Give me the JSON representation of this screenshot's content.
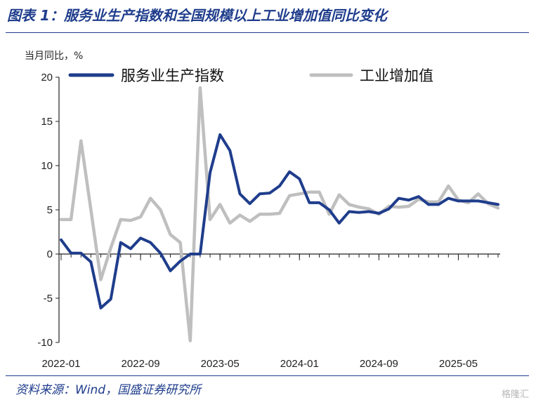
{
  "header": {
    "title": "图表 1：服务业生产指数和全国规模以上工业增加值同比变化"
  },
  "footer": {
    "source": "资料来源：Wind，国盛证券研究所",
    "watermark": "格隆汇"
  },
  "chart_data": {
    "type": "line",
    "title": "图表 1：服务业生产指数和全国规模以上工业增加值同比变化",
    "ylabel": "当月同比，%",
    "xlabel": "",
    "ylim": [
      -10,
      20
    ],
    "yticks": [
      -10,
      -5,
      0,
      5,
      10,
      15,
      20
    ],
    "x_tick_labels": [
      "2022-01",
      "2022-09",
      "2023-05",
      "2024-01",
      "2024-09",
      "2025-05"
    ],
    "x": [
      "2022-01",
      "2022-02",
      "2022-03",
      "2022-04",
      "2022-05",
      "2022-06",
      "2022-07",
      "2022-08",
      "2022-09",
      "2022-10",
      "2022-11",
      "2022-12",
      "2023-01",
      "2023-02",
      "2023-03",
      "2023-04",
      "2023-05",
      "2023-06",
      "2023-07",
      "2023-08",
      "2023-09",
      "2023-10",
      "2023-11",
      "2023-12",
      "2024-01",
      "2024-02",
      "2024-03",
      "2024-04",
      "2024-05",
      "2024-06",
      "2024-07",
      "2024-08",
      "2024-09",
      "2024-10",
      "2024-11",
      "2024-12",
      "2025-01",
      "2025-02",
      "2025-03",
      "2025-04",
      "2025-05",
      "2025-06",
      "2025-07",
      "2025-08",
      "2025-09"
    ],
    "grid": false,
    "legend_position": "top",
    "series": [
      {
        "name": "服务业生产指数",
        "color": "#1f3d8c",
        "values": [
          1.6,
          0.1,
          0.1,
          -0.9,
          -6.1,
          -5.1,
          1.3,
          0.6,
          1.8,
          1.3,
          0.1,
          -1.9,
          -0.8,
          0.0,
          0.0,
          9.2,
          13.5,
          11.7,
          6.8,
          5.7,
          6.8,
          6.9,
          7.7,
          9.3,
          8.5,
          5.8,
          5.8,
          5.0,
          3.5,
          4.8,
          4.7,
          4.8,
          4.6,
          5.1,
          6.3,
          6.1,
          6.5,
          5.6,
          5.6,
          6.3,
          6.0,
          6.0,
          6.0,
          5.8,
          5.6
        ]
      },
      {
        "name": "工业增加值",
        "color": "#bfbfbf",
        "values": [
          3.9,
          3.9,
          12.8,
          5.0,
          -2.9,
          0.7,
          3.9,
          3.8,
          4.2,
          6.3,
          5.0,
          2.2,
          1.3,
          -9.8,
          18.8,
          3.9,
          5.6,
          3.5,
          4.4,
          3.7,
          4.5,
          4.5,
          4.6,
          6.6,
          6.8,
          7.0,
          7.0,
          4.5,
          6.7,
          5.6,
          5.3,
          5.1,
          4.5,
          5.4,
          5.3,
          5.4,
          6.2,
          5.9,
          5.9,
          7.7,
          6.1,
          5.8,
          6.8,
          5.7,
          5.2
        ]
      }
    ]
  }
}
